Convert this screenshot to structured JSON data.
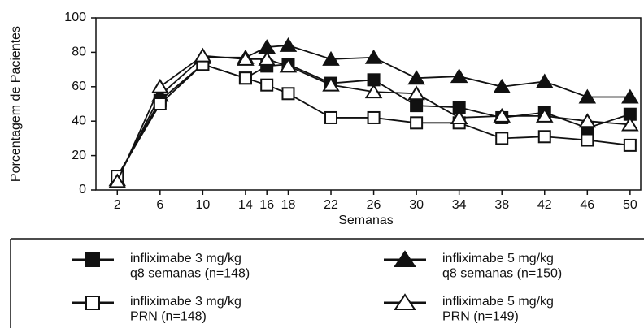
{
  "chart_data": {
    "type": "line",
    "x_label": "Semanas",
    "y_label": "Porcentagem de Pacientes",
    "x": [
      2,
      6,
      10,
      14,
      16,
      18,
      22,
      26,
      30,
      34,
      38,
      42,
      46,
      50
    ],
    "xlim": [
      0,
      51
    ],
    "xticks": [
      2,
      6,
      10,
      14,
      16,
      18,
      22,
      26,
      30,
      34,
      38,
      42,
      46,
      50
    ],
    "ylim": [
      0,
      100
    ],
    "yticks": [
      0,
      20,
      40,
      60,
      80,
      100
    ],
    "grid": false,
    "series": [
      {
        "name": "infliximabe 3 mg/kg\nq8 semanas (n=148)",
        "color": "#111111",
        "marker": "square",
        "filled": true,
        "values": [
          7,
          52,
          73,
          65,
          72,
          73,
          62,
          64,
          49,
          48,
          42,
          45,
          36,
          44
        ]
      },
      {
        "name": "infliximabe 5 mg/kg\nq8 semanas (n=150)",
        "color": "#111111",
        "marker": "triangle",
        "filled": true,
        "values": [
          6,
          55,
          77,
          77,
          83,
          84,
          76,
          77,
          65,
          66,
          60,
          63,
          54,
          54
        ]
      },
      {
        "name": "infliximabe 3 mg/kg\nPRN (n=148)",
        "color": "#111111",
        "marker": "square",
        "filled": false,
        "values": [
          8,
          50,
          73,
          65,
          61,
          56,
          42,
          42,
          39,
          39,
          30,
          31,
          29,
          26
        ]
      },
      {
        "name": "infliximabe 5 mg/kg\nPRN (n=149)",
        "color": "#111111",
        "marker": "triangle",
        "filled": false,
        "values": [
          5,
          60,
          78,
          76,
          76,
          72,
          61,
          57,
          56,
          42,
          43,
          43,
          40,
          38
        ]
      }
    ]
  }
}
